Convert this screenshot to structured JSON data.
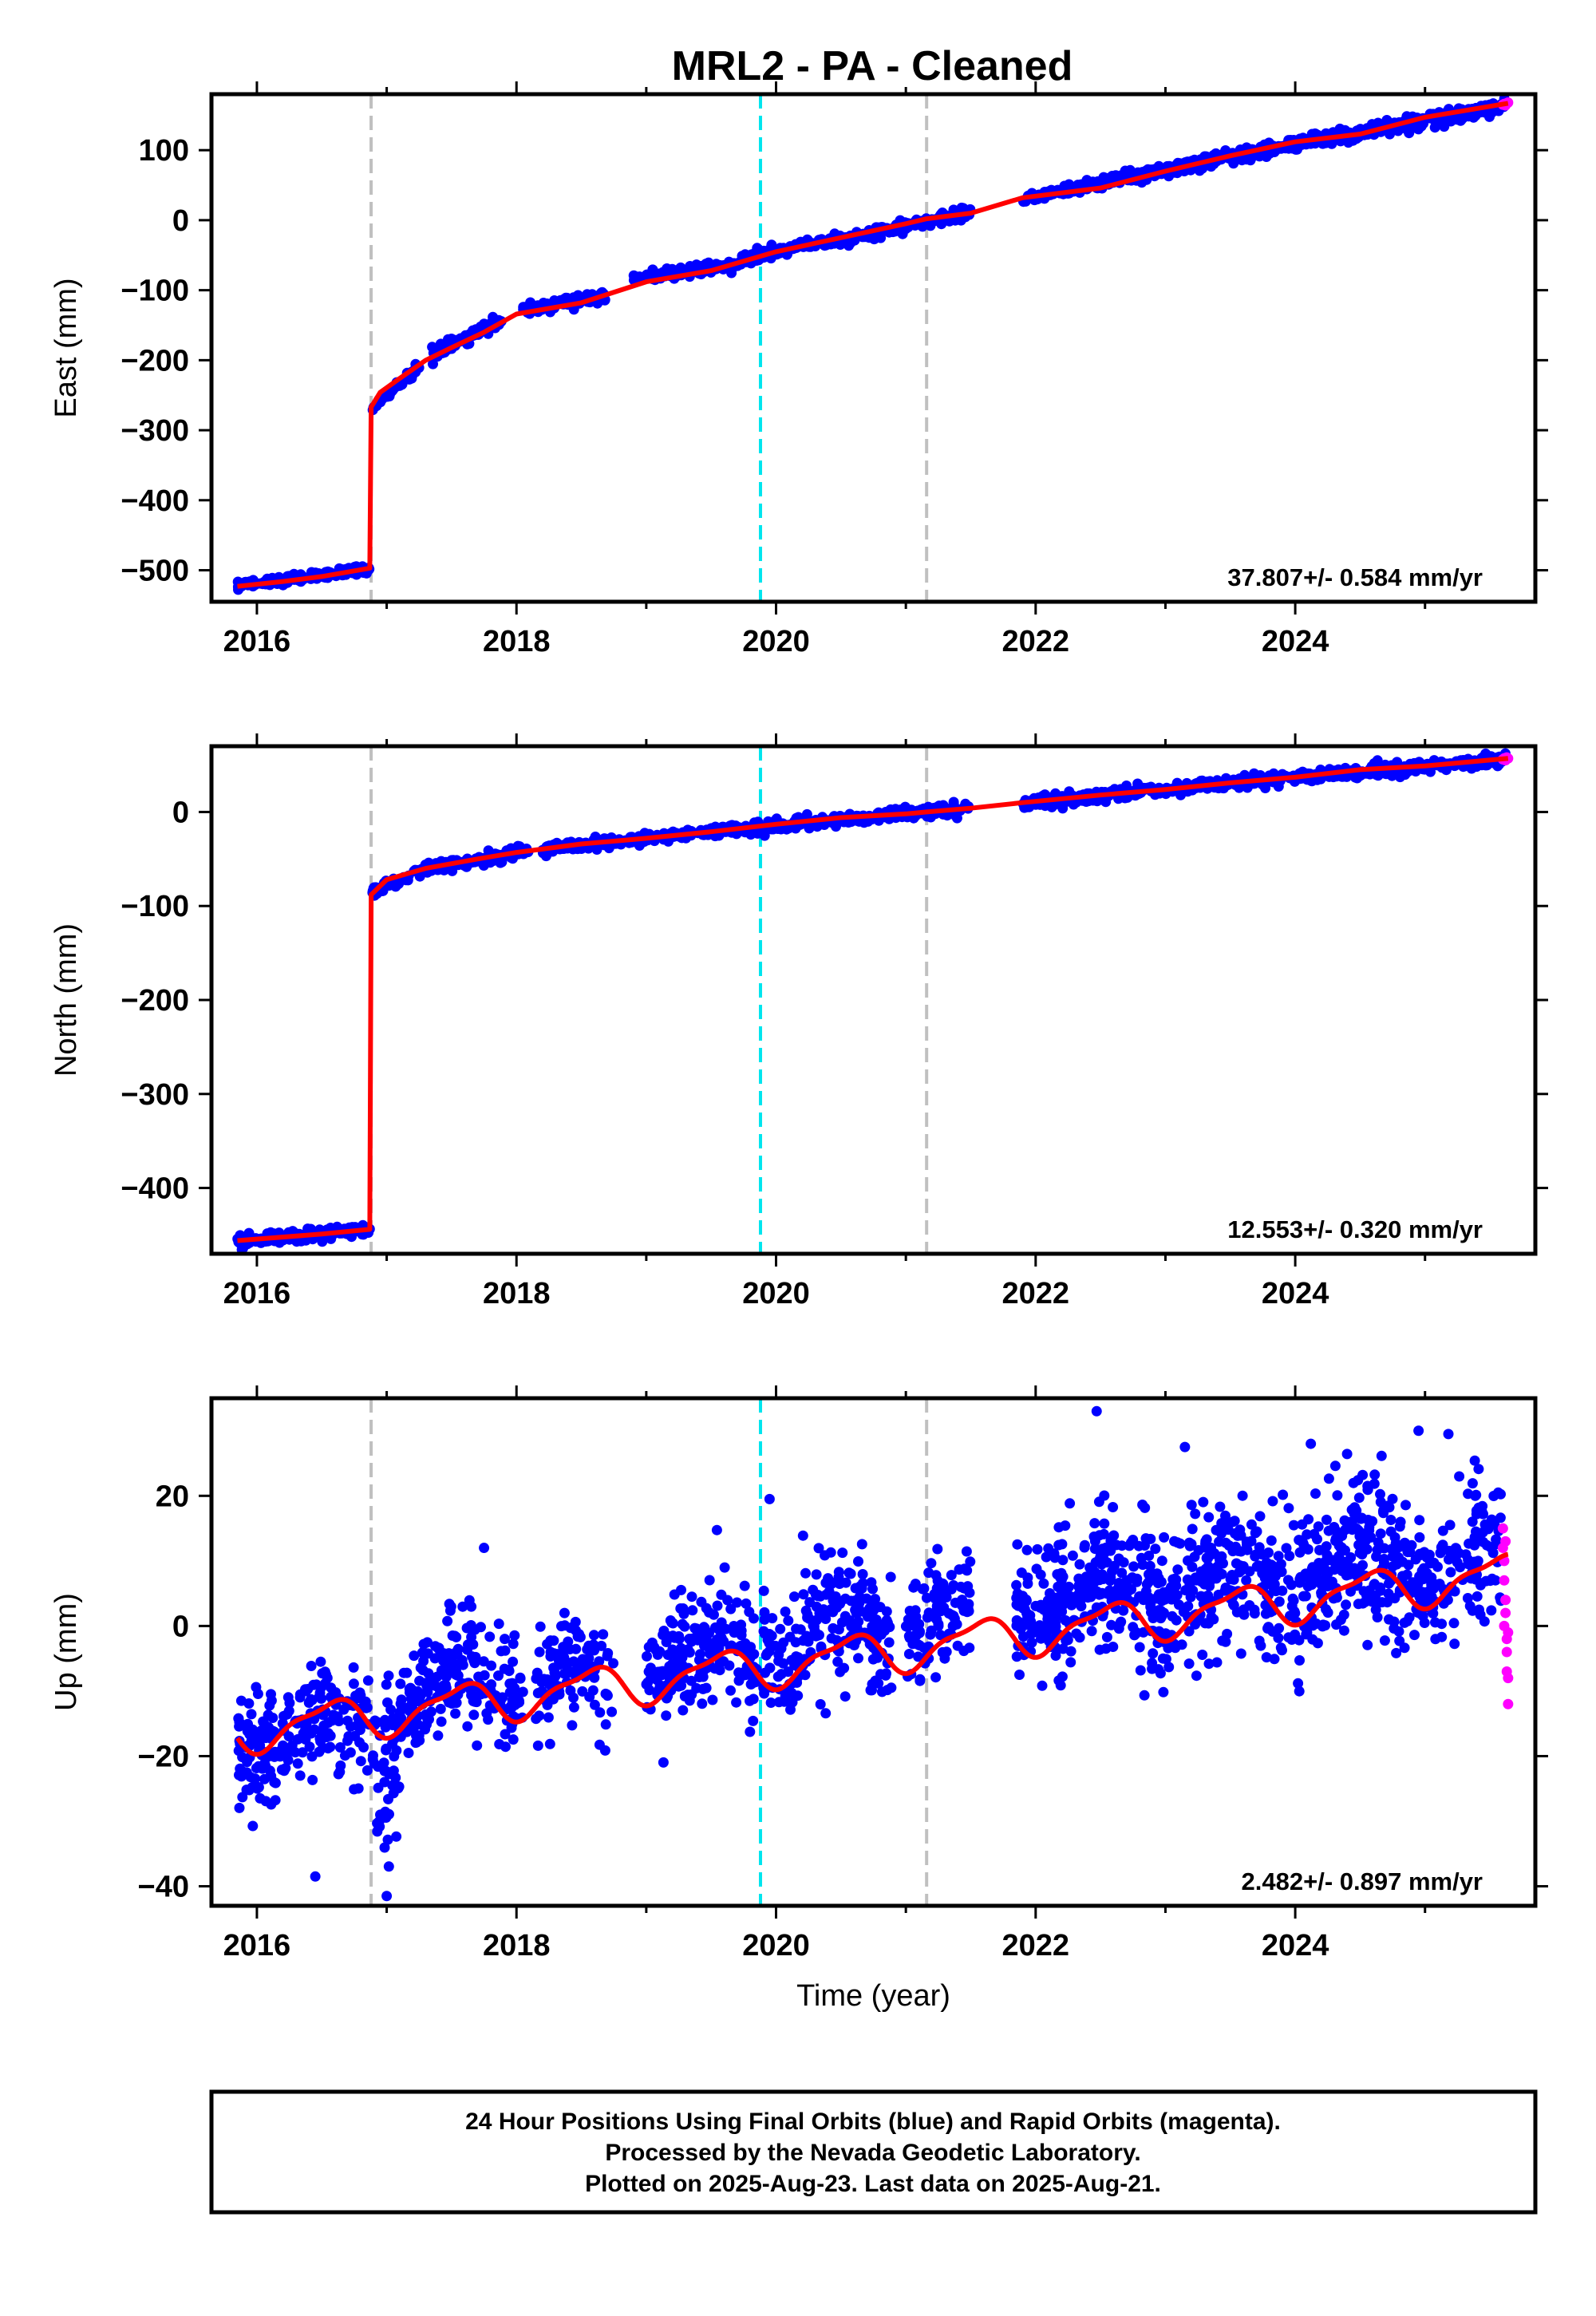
{
  "title": "MRL2  - PA - Cleaned",
  "footer": {
    "line1": "24 Hour Positions Using Final Orbits (blue) and Rapid Orbits (magenta).",
    "line2": "Processed by the Nevada Geodetic Laboratory.",
    "line3": "Plotted on 2025-Aug-23. Last data on 2025-Aug-21."
  },
  "colors": {
    "final": "#0000ff",
    "rapid": "#ff00ff",
    "model": "#ff0000",
    "equipment_change": "#c0c0c0",
    "earthquake": "#00e5ee"
  },
  "chart_data": [
    {
      "type": "scatter",
      "ylabel": "East (mm)",
      "xlabel": "",
      "xlim": [
        2015.65,
        2025.85
      ],
      "ylim": [
        -545,
        180
      ],
      "x_ticks": [
        2016,
        2018,
        2020,
        2022,
        2024
      ],
      "y_ticks": [
        100,
        0,
        -100,
        -200,
        -300,
        -400,
        -500
      ],
      "y_tick_labels": [
        "100",
        "0",
        "−100",
        "−200",
        "−300",
        "−400",
        "−500"
      ],
      "rate_label": "37.807+/- 0.584 mm/yr",
      "vlines": [
        {
          "x": 2016.88,
          "kind": "equipment_change"
        },
        {
          "x": 2019.88,
          "kind": "earthquake"
        },
        {
          "x": 2021.16,
          "kind": "equipment_change"
        }
      ],
      "model": [
        [
          2015.85,
          -523
        ],
        [
          2016.2,
          -516
        ],
        [
          2016.5,
          -509
        ],
        [
          2016.87,
          -497
        ],
        [
          2016.88,
          -267
        ],
        [
          2016.95,
          -246
        ],
        [
          2017.1,
          -226
        ],
        [
          2017.3,
          -200
        ],
        [
          2017.5,
          -182
        ],
        [
          2017.75,
          -160
        ],
        [
          2018.0,
          -134
        ],
        [
          2018.5,
          -118
        ],
        [
          2019.0,
          -88
        ],
        [
          2019.5,
          -72
        ],
        [
          2020.0,
          -45
        ],
        [
          2020.5,
          -25
        ],
        [
          2021.0,
          -5
        ],
        [
          2021.16,
          2
        ],
        [
          2021.5,
          10
        ],
        [
          2021.9,
          32
        ],
        [
          2022.5,
          46
        ],
        [
          2023.0,
          70
        ],
        [
          2023.5,
          92
        ],
        [
          2024.0,
          112
        ],
        [
          2024.5,
          123
        ],
        [
          2025.0,
          147
        ],
        [
          2025.64,
          167
        ]
      ],
      "series": [
        {
          "name": "Final Orbits (blue)",
          "segments": [
            {
              "x0": 2015.85,
              "x1": 2016.87,
              "y0": -523,
              "y1": -497,
              "noise": 3,
              "n": 160
            },
            {
              "x0": 2016.89,
              "x1": 2017.25,
              "y0": -267,
              "y1": -210,
              "noise": 3,
              "n": 60
            },
            {
              "x0": 2017.35,
              "x1": 2017.9,
              "y0": -192,
              "y1": -142,
              "noise": 4,
              "n": 90
            },
            {
              "x0": 2018.05,
              "x1": 2018.7,
              "y0": -128,
              "y1": -108,
              "noise": 4,
              "n": 90
            },
            {
              "x0": 2018.9,
              "x1": 2019.7,
              "y0": -84,
              "y1": -64,
              "noise": 4,
              "n": 110
            },
            {
              "x0": 2019.7,
              "x1": 2021.16,
              "y0": -58,
              "y1": -2,
              "noise": 4,
              "n": 220
            },
            {
              "x0": 2021.16,
              "x1": 2021.5,
              "y0": -2,
              "y1": 11,
              "noise": 4,
              "n": 55
            },
            {
              "x0": 2021.9,
              "x1": 2023.2,
              "y0": 30,
              "y1": 80,
              "noise": 4,
              "n": 220
            },
            {
              "x0": 2023.2,
              "x1": 2025.62,
              "y0": 80,
              "y1": 163,
              "noise": 5,
              "n": 380
            }
          ]
        },
        {
          "name": "Rapid Orbits (magenta)",
          "points": [
            [
              2025.6,
              165
            ],
            [
              2025.61,
              166
            ],
            [
              2025.62,
              164
            ],
            [
              2025.63,
              167
            ],
            [
              2025.64,
              168
            ]
          ]
        }
      ]
    },
    {
      "type": "scatter",
      "ylabel": "North (mm)",
      "xlabel": "",
      "xlim": [
        2015.65,
        2025.85
      ],
      "ylim": [
        -470,
        70
      ],
      "x_ticks": [
        2016,
        2018,
        2020,
        2022,
        2024
      ],
      "y_ticks": [
        0,
        -100,
        -200,
        -300,
        -400
      ],
      "y_tick_labels": [
        "0",
        "−100",
        "−200",
        "−300",
        "−400"
      ],
      "rate_label": "12.553+/- 0.320 mm/yr",
      "vlines": [
        {
          "x": 2016.88,
          "kind": "equipment_change"
        },
        {
          "x": 2019.88,
          "kind": "earthquake"
        },
        {
          "x": 2021.16,
          "kind": "equipment_change"
        }
      ],
      "model": [
        [
          2015.85,
          -456
        ],
        [
          2016.5,
          -449
        ],
        [
          2016.87,
          -444
        ],
        [
          2016.88,
          -88
        ],
        [
          2017.0,
          -72
        ],
        [
          2017.3,
          -60
        ],
        [
          2017.7,
          -50
        ],
        [
          2018.0,
          -43
        ],
        [
          2018.5,
          -34
        ],
        [
          2019.0,
          -28
        ],
        [
          2019.5,
          -21
        ],
        [
          2020.0,
          -13
        ],
        [
          2020.5,
          -6
        ],
        [
          2021.0,
          -2
        ],
        [
          2021.16,
          0
        ],
        [
          2021.5,
          4
        ],
        [
          2021.9,
          10
        ],
        [
          2022.5,
          18
        ],
        [
          2023.0,
          24
        ],
        [
          2023.5,
          31
        ],
        [
          2024.0,
          37
        ],
        [
          2024.5,
          45
        ],
        [
          2025.0,
          49
        ],
        [
          2025.64,
          57
        ]
      ],
      "series": [
        {
          "name": "Final Orbits (blue)",
          "segments": [
            {
              "x0": 2015.85,
              "x1": 2016.87,
              "y0": -456,
              "y1": -444,
              "noise": 3,
              "n": 160
            },
            {
              "x0": 2016.89,
              "x1": 2017.3,
              "y0": -85,
              "y1": -62,
              "noise": 3,
              "n": 60
            },
            {
              "x0": 2017.3,
              "x1": 2018.1,
              "y0": -60,
              "y1": -42,
              "noise": 3,
              "n": 130
            },
            {
              "x0": 2018.2,
              "x1": 2019.0,
              "y0": -40,
              "y1": -28,
              "noise": 3,
              "n": 120
            },
            {
              "x0": 2019.0,
              "x1": 2021.16,
              "y0": -28,
              "y1": 0,
              "noise": 3,
              "n": 320
            },
            {
              "x0": 2021.16,
              "x1": 2021.5,
              "y0": 0,
              "y1": 5,
              "noise": 3,
              "n": 50
            },
            {
              "x0": 2021.9,
              "x1": 2023.2,
              "y0": 10,
              "y1": 27,
              "noise": 3,
              "n": 220
            },
            {
              "x0": 2023.2,
              "x1": 2025.62,
              "y0": 27,
              "y1": 56,
              "noise": 3,
              "n": 380
            }
          ]
        },
        {
          "name": "Rapid Orbits (magenta)",
          "points": [
            [
              2025.6,
              56
            ],
            [
              2025.61,
              57
            ],
            [
              2025.62,
              55
            ],
            [
              2025.63,
              58
            ],
            [
              2025.64,
              57
            ]
          ]
        }
      ]
    },
    {
      "type": "scatter",
      "ylabel": "Up (mm)",
      "xlabel": "Time (year)",
      "xlim": [
        2015.65,
        2025.85
      ],
      "ylim": [
        -43,
        35
      ],
      "x_ticks": [
        2016,
        2018,
        2020,
        2022,
        2024
      ],
      "y_ticks": [
        20,
        0,
        -20,
        -40
      ],
      "y_tick_labels": [
        "20",
        "0",
        "−20",
        "−40"
      ],
      "rate_label": "2.482+/- 0.897 mm/yr",
      "vlines": [
        {
          "x": 2016.88,
          "kind": "equipment_change"
        },
        {
          "x": 2019.88,
          "kind": "earthquake"
        },
        {
          "x": 2021.16,
          "kind": "equipment_change"
        }
      ],
      "model_trend": {
        "x0": 2015.85,
        "y0": -16.3,
        "rate": 2.482,
        "offsets": [
          {
            "x": 2016.88,
            "dy": 0
          },
          {
            "x": 2021.16,
            "dy": 0
          }
        ]
      },
      "model_seasonal": {
        "annual_amp": 3.0,
        "semiannual_amp": 1.0
      },
      "series": [
        {
          "name": "Final Orbits (blue)",
          "segments": [
            {
              "x0": 2015.85,
              "x1": 2016.5,
              "y0": -17,
              "y1": -16,
              "noise": 4.5,
              "n": 150
            },
            {
              "x0": 2016.5,
              "x1": 2016.87,
              "y0": -17,
              "y1": -15,
              "noise": 4.5,
              "n": 70
            },
            {
              "x0": 2016.89,
              "x1": 2017.1,
              "y0": -22,
              "y1": -18,
              "noise": 6,
              "n": 50
            },
            {
              "x0": 2017.1,
              "x1": 2018.05,
              "y0": -11,
              "y1": -8,
              "noise": 4.5,
              "n": 220
            },
            {
              "x0": 2018.15,
              "x1": 2018.75,
              "y0": -7,
              "y1": -9,
              "noise": 4,
              "n": 110
            },
            {
              "x0": 2019.0,
              "x1": 2019.85,
              "y0": -4,
              "y1": -6,
              "noise": 4.5,
              "n": 200
            },
            {
              "x0": 2019.9,
              "x1": 2020.9,
              "y0": -1,
              "y1": -1,
              "noise": 5,
              "n": 230
            },
            {
              "x0": 2021.0,
              "x1": 2021.5,
              "y0": 2,
              "y1": 1,
              "noise": 5,
              "n": 110
            },
            {
              "x0": 2021.85,
              "x1": 2022.5,
              "y0": 4,
              "y1": 5,
              "noise": 5,
              "n": 180
            },
            {
              "x0": 2022.5,
              "x1": 2023.5,
              "y0": 4,
              "y1": 7,
              "noise": 5.5,
              "n": 260
            },
            {
              "x0": 2023.5,
              "x1": 2024.5,
              "y0": 6,
              "y1": 10,
              "noise": 5.5,
              "n": 260
            },
            {
              "x0": 2024.5,
              "x1": 2025.6,
              "y0": 8,
              "y1": 11,
              "noise": 5.5,
              "n": 260
            }
          ],
          "outliers": [
            [
              2016.45,
              -38.5
            ],
            [
              2017.0,
              -41.5
            ],
            [
              2022.47,
              33
            ],
            [
              2024.95,
              30
            ],
            [
              2025.18,
              29.5
            ],
            [
              2017.75,
              12
            ],
            [
              2019.95,
              19.5
            ],
            [
              2023.15,
              27.5
            ],
            [
              2024.12,
              28
            ]
          ]
        },
        {
          "name": "Rapid Orbits (magenta)",
          "points": [
            [
              2025.6,
              15
            ],
            [
              2025.6,
              12
            ],
            [
              2025.61,
              10
            ],
            [
              2025.61,
              7
            ],
            [
              2025.62,
              4
            ],
            [
              2025.62,
              2
            ],
            [
              2025.63,
              -2
            ],
            [
              2025.63,
              -4
            ],
            [
              2025.63,
              -7
            ],
            [
              2025.64,
              -8
            ],
            [
              2025.64,
              -12
            ],
            [
              2025.62,
              13
            ],
            [
              2025.61,
              0
            ],
            [
              2025.64,
              -1
            ]
          ]
        }
      ]
    }
  ]
}
